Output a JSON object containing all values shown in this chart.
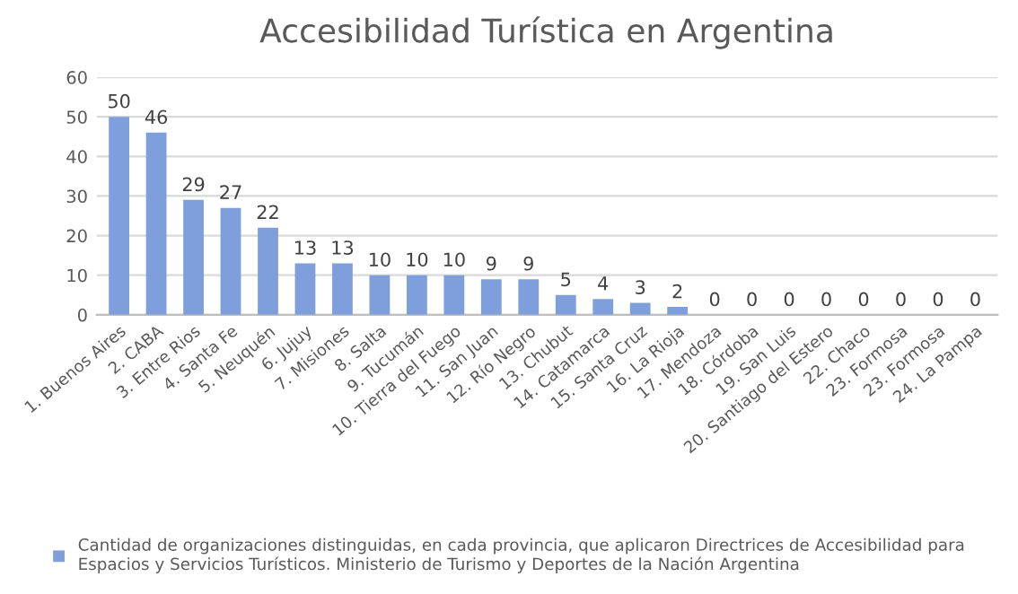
{
  "chart_data": {
    "type": "bar",
    "title": "Accesibilidad Turística en Argentina",
    "categories": [
      "1. Buenos Aires",
      "2. CABA",
      "3. Entre Rios",
      "4. Santa Fe",
      "5. Neuquén",
      "6. Jujuy",
      "7. Misiones",
      "8. Salta",
      "9. Tucumán",
      "10. Tierra del Fuego",
      "11. San Juan",
      "12. Río Negro",
      "13. Chubut",
      "14. Catamarca",
      "15. Santa Cruz",
      "16. La Rioja",
      "17. Mendoza",
      "18. Córdoba",
      "19. San Luis",
      "20. Santiago del Estero",
      "22. Chaco",
      "23. Formosa",
      "23. Formosa",
      "24. La Pampa"
    ],
    "series": [
      {
        "name": "Cantidad de organizaciones distinguidas, en cada provincia, que aplicaron Directrices de Accesibilidad para Espacios y Servicios Turísticos. Ministerio de Turismo y Deportes de la Nación Argentina",
        "color": "#7f9fdc",
        "values": [
          50,
          46,
          29,
          27,
          22,
          13,
          13,
          10,
          10,
          10,
          9,
          9,
          5,
          4,
          3,
          2,
          0,
          0,
          0,
          0,
          0,
          0,
          0,
          0
        ]
      }
    ],
    "ylim": [
      0,
      60
    ],
    "yticks": [
      0,
      10,
      20,
      30,
      40,
      50,
      60
    ],
    "grid": "y",
    "legend": "bottom",
    "data_labels": true
  }
}
